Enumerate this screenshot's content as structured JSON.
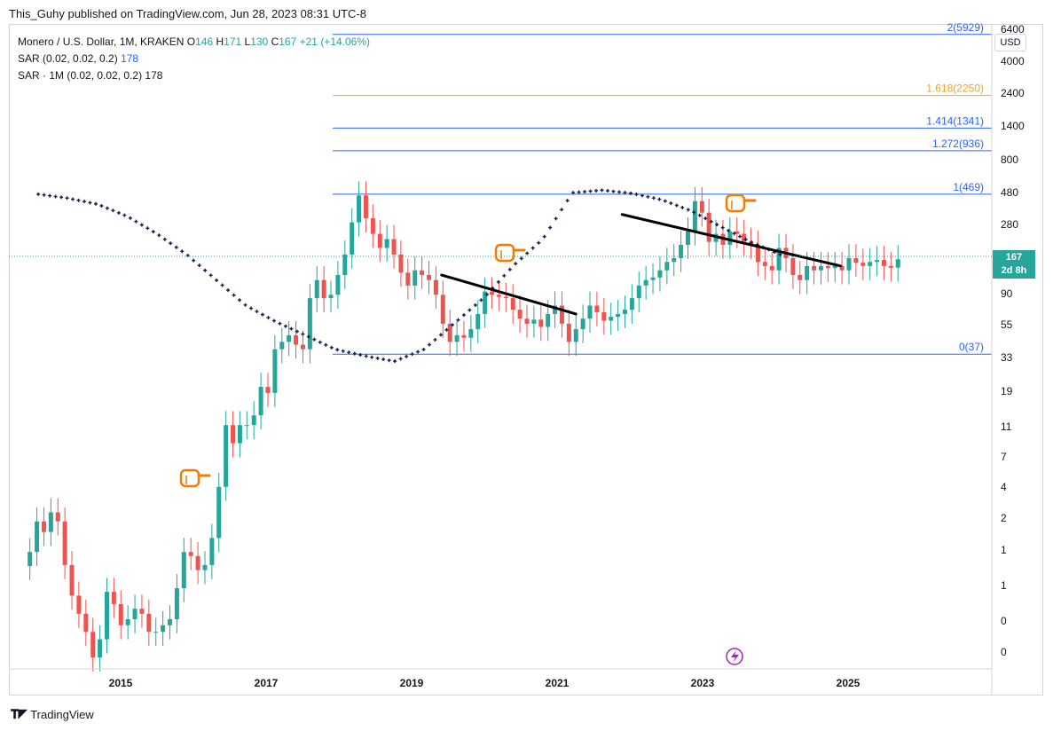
{
  "header": {
    "published": "This_Guhy published on TradingView.com, Jun 28, 2023 08:31 UTC-8"
  },
  "legend": {
    "symbol": "Monero / U.S. Dollar, 1M, KRAKEN",
    "o_label": "O",
    "o_val": "146",
    "h_label": "H",
    "h_val": "171",
    "l_label": "L",
    "l_val": "130",
    "c_label": "C",
    "c_val": "167",
    "change": "+21 (+14.06%)",
    "sar1_name": "SAR (0.02, 0.02, 0.2)",
    "sar1_val": "178",
    "sar2_name": "SAR · 1M (0.02, 0.02, 0.2)",
    "sar2_val": "178"
  },
  "scale": {
    "currency": "USD",
    "last_price": "167",
    "countdown": "2d 8h"
  },
  "footer": {
    "brand": "TradingView"
  },
  "colors": {
    "up": "#26a69a",
    "down": "#ef5350",
    "sar": "#131c4a",
    "fib_blue": "#2962ff",
    "fib_orange": "#f7a21b",
    "trend": "#000000",
    "pointer": "#f57c00"
  },
  "chart_data": {
    "type": "candlestick",
    "title": "Monero / U.S. Dollar, 1M, KRAKEN",
    "yscale": "log",
    "ytick_labels": [
      "6400",
      "4000",
      "2400",
      "1400",
      "800",
      "480",
      "280",
      "167",
      "90",
      "55",
      "33",
      "19",
      "11",
      "7",
      "4",
      "2",
      "1",
      "1",
      "0",
      "0"
    ],
    "xtick_labels": [
      "2015",
      "2017",
      "2019",
      "2021",
      "2023",
      "2025"
    ],
    "xlim": [
      2014.2,
      2025.9
    ],
    "ylim_price": [
      0.25,
      7000
    ],
    "fib_levels": [
      {
        "label": "0(37)",
        "value": 37
      },
      {
        "label": "1(469)",
        "value": 469
      },
      {
        "label": "1.272(936)",
        "value": 936
      },
      {
        "label": "1.414(1341)",
        "value": 1341
      },
      {
        "label": "1.618(2250)",
        "value": 2250
      },
      {
        "label": "2(5929)",
        "value": 5929
      }
    ],
    "candles_close": [
      1.6,
      2.6,
      2.2,
      3.0,
      2.6,
      1.3,
      0.8,
      0.6,
      0.45,
      0.3,
      0.4,
      0.85,
      0.7,
      0.5,
      0.55,
      0.65,
      0.6,
      0.45,
      0.45,
      0.5,
      0.55,
      0.9,
      1.6,
      1.5,
      1.2,
      1.3,
      2.0,
      4.5,
      12,
      9,
      12,
      12,
      14,
      22,
      20,
      40,
      45,
      50,
      43,
      40,
      90,
      120,
      90,
      95,
      130,
      180,
      300,
      460,
      320,
      250,
      200,
      230,
      180,
      135,
      110,
      140,
      130,
      120,
      95,
      60,
      45,
      50,
      48,
      55,
      70,
      100,
      95,
      92,
      90,
      75,
      65,
      60,
      64,
      57,
      70,
      80,
      60,
      45,
      55,
      65,
      80,
      72,
      63,
      67,
      70,
      75,
      90,
      110,
      120,
      125,
      140,
      160,
      170,
      210,
      260,
      420,
      350,
      220,
      250,
      210,
      260,
      250,
      220,
      210,
      160,
      150,
      140,
      200,
      170,
      130,
      120,
      150,
      140,
      150,
      145,
      150,
      140,
      170,
      158,
      150,
      160,
      165,
      150,
      146,
      167
    ],
    "sar_levels": [
      469,
      440,
      400,
      330,
      250,
      180,
      120,
      80,
      62,
      50,
      40,
      36,
      33,
      40,
      60,
      90,
      150,
      230,
      480,
      500,
      475,
      430,
      360,
      280,
      220,
      180
    ],
    "trendlines": [
      {
        "from": [
          2019.35,
          130
        ],
        "to": [
          2020.95,
          70
        ]
      },
      {
        "from": [
          2021.5,
          340
        ],
        "to": [
          2024.1,
          150
        ]
      }
    ],
    "annotations": [
      "pointing-hand",
      "pointing-hand",
      "pointing-hand"
    ],
    "grid": false,
    "legend_position": "top-left"
  }
}
